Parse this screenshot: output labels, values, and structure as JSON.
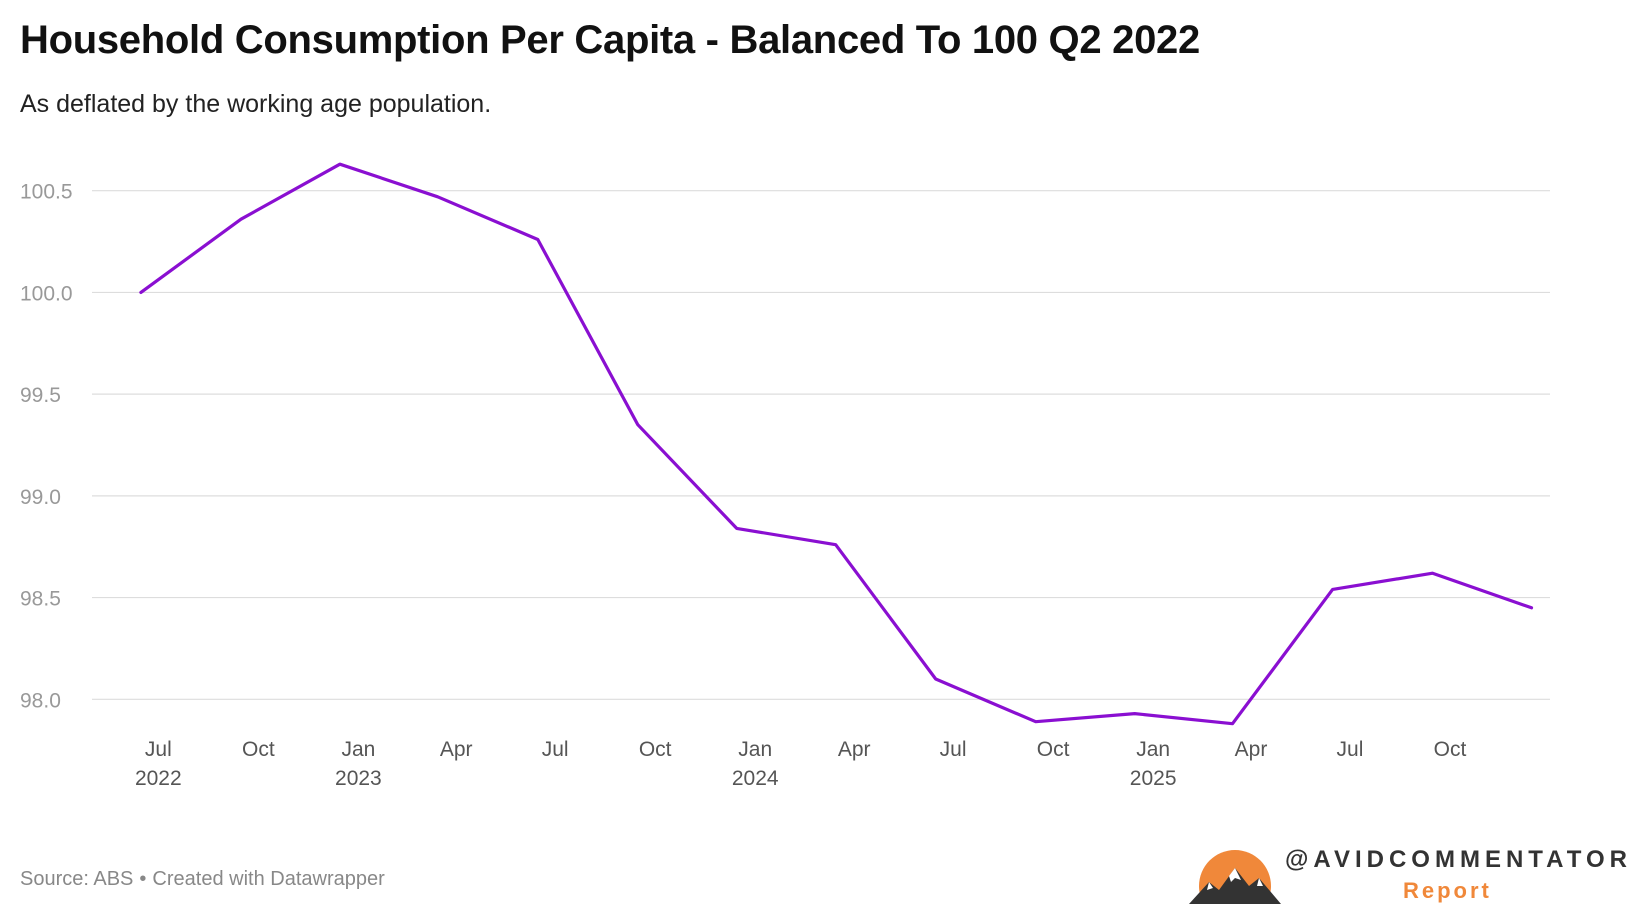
{
  "title": "Household Consumption Per Capita - Balanced To 100 Q2 2022",
  "subtitle": "As deflated by the working age population.",
  "source": {
    "prefix": "Source: ABS",
    "separator": "•",
    "credit": "Created with Datawrapper"
  },
  "logo": {
    "handle": "@AVIDCOMMENTATOR",
    "tagline": "Report",
    "sun_color": "#f0883a"
  },
  "chart_data": {
    "type": "line",
    "x_tick_labels": [
      {
        "month": "Jul",
        "year": "2022"
      },
      {
        "month": "Oct",
        "year": ""
      },
      {
        "month": "Jan",
        "year": "2023"
      },
      {
        "month": "Apr",
        "year": ""
      },
      {
        "month": "Jul",
        "year": ""
      },
      {
        "month": "Oct",
        "year": ""
      },
      {
        "month": "Jan",
        "year": "2024"
      },
      {
        "month": "Apr",
        "year": ""
      },
      {
        "month": "Jul",
        "year": ""
      },
      {
        "month": "Oct",
        "year": ""
      },
      {
        "month": "Jan",
        "year": "2025"
      },
      {
        "month": "Apr",
        "year": ""
      },
      {
        "month": "Jul",
        "year": ""
      },
      {
        "month": "Oct",
        "year": ""
      }
    ],
    "x_tick_dates": [
      "2022-07-01",
      "2022-10-01",
      "2023-01-01",
      "2023-04-01",
      "2023-07-01",
      "2023-10-01",
      "2024-01-01",
      "2024-04-01",
      "2024-07-01",
      "2024-10-01",
      "2025-01-01",
      "2025-04-01",
      "2025-07-01",
      "2025-10-01"
    ],
    "y_ticks": [
      98.0,
      98.5,
      99.0,
      99.5,
      100.0,
      100.5
    ],
    "y_tick_labels": [
      "98.0",
      "98.5",
      "99.0",
      "99.5",
      "100.0",
      "100.5"
    ],
    "ylim": [
      97.8,
      100.7
    ],
    "grid": true,
    "color": "#8a0fd1",
    "series": [
      {
        "x": [
          "2022-06-15",
          "2022-09-15",
          "2022-12-15",
          "2023-03-15",
          "2023-06-15",
          "2023-09-15",
          "2023-12-15",
          "2024-03-15",
          "2024-06-15",
          "2024-09-15",
          "2024-12-15",
          "2025-03-15",
          "2025-06-15",
          "2025-09-15",
          "2025-12-15"
        ],
        "values": [
          100.0,
          100.36,
          100.63,
          100.47,
          100.26,
          99.35,
          98.84,
          98.76,
          98.1,
          97.89,
          97.93,
          97.88,
          98.54,
          98.62,
          98.45
        ]
      }
    ]
  }
}
